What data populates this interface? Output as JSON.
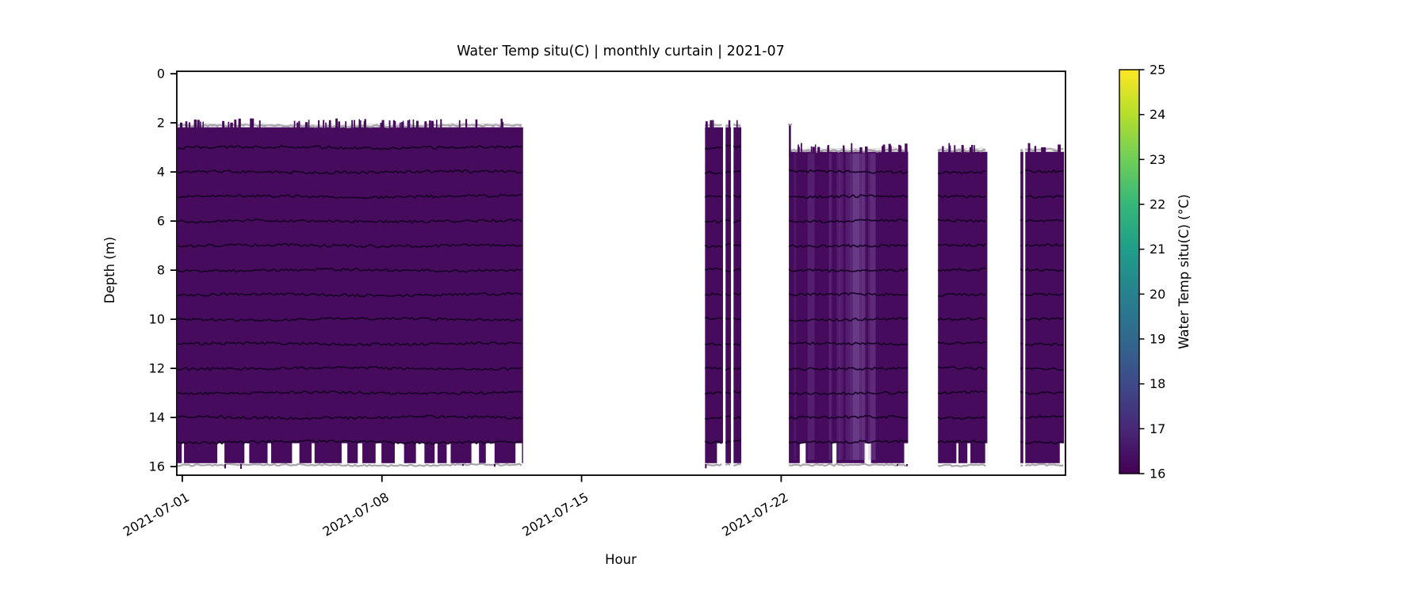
{
  "chart_data": {
    "type": "heatmap",
    "title": "Water Temp situ(C) | monthly curtain | 2021-07",
    "xlabel": "Hour",
    "ylabel": "Depth (m)",
    "grid": false,
    "x_tick_labels": [
      "2021-07-01",
      "2021-07-08",
      "2021-07-15",
      "2021-07-22"
    ],
    "x_tick_days": [
      1,
      8,
      15,
      22
    ],
    "x_domain_days": [
      0.806,
      31.97
    ],
    "y_ticks": [
      0,
      2,
      4,
      6,
      8,
      10,
      12,
      14,
      16
    ],
    "y_domain_depth_m": [
      -0.1,
      16.35
    ],
    "observed_value_c": 16.1,
    "fill_color": "#470b5e",
    "sensor_line_color": "#150222",
    "edge_trace_color": "#a8a2ab",
    "sensor_line_spacing_m": 1,
    "body_bottom_depth": 15.0,
    "fringe_bottom_depth": 15.86,
    "colorbar": {
      "label": "Water Temp situ(C) (°C)",
      "min": 16,
      "max": 25,
      "ticks": [
        16,
        17,
        18,
        19,
        20,
        21,
        22,
        23,
        24,
        25
      ],
      "colormap": "viridis",
      "stops": [
        {
          "t": 16,
          "color": "#440154"
        },
        {
          "t": 17,
          "color": "#482878"
        },
        {
          "t": 18,
          "color": "#3e4a89"
        },
        {
          "t": 19,
          "color": "#31688e"
        },
        {
          "t": 20,
          "color": "#26828e"
        },
        {
          "t": 21,
          "color": "#1f9e89"
        },
        {
          "t": 22,
          "color": "#35b779"
        },
        {
          "t": 23,
          "color": "#6ece58"
        },
        {
          "t": 24,
          "color": "#b5de2b"
        },
        {
          "t": 25,
          "color": "#fde725"
        }
      ]
    },
    "segments": [
      {
        "id": "block-1",
        "start_day": 0.806,
        "end_day": 12.95,
        "top_depth": 2.1,
        "fringe_fill": 0.78,
        "striations": false
      },
      {
        "id": "block-2a",
        "start_day": 19.33,
        "end_day": 19.96,
        "top_depth": 2.1,
        "fringe_fill": 0.45,
        "striations": false
      },
      {
        "id": "block-2b",
        "start_day": 20.05,
        "end_day": 20.24,
        "top_depth": 2.1,
        "fringe_fill": 0.45,
        "striations": false
      },
      {
        "id": "block-2c",
        "start_day": 20.33,
        "end_day": 20.6,
        "top_depth": 2.1,
        "fringe_fill": 0.5,
        "striations": false
      },
      {
        "id": "block-3",
        "start_day": 22.27,
        "end_day": 26.45,
        "top_depth": 3.1,
        "fringe_fill": 0.8,
        "striations": true,
        "striation_range": [
          22.35,
          25.2
        ],
        "left_spike_top_depth": 2.1
      },
      {
        "id": "block-4",
        "start_day": 27.5,
        "end_day": 29.23,
        "top_depth": 3.1,
        "fringe_fill": 0.85,
        "striations": false
      },
      {
        "id": "block-5a",
        "start_day": 30.39,
        "end_day": 30.49,
        "top_depth": 3.1,
        "fringe_fill": 0.7,
        "striations": false
      },
      {
        "id": "block-5b",
        "start_day": 30.56,
        "end_day": 31.92,
        "top_depth": 3.1,
        "fringe_fill": 0.8,
        "striations": false
      }
    ],
    "texture": {
      "seed": 7,
      "top_spike_density": 0.13,
      "below_tick_density": 0.06
    }
  }
}
